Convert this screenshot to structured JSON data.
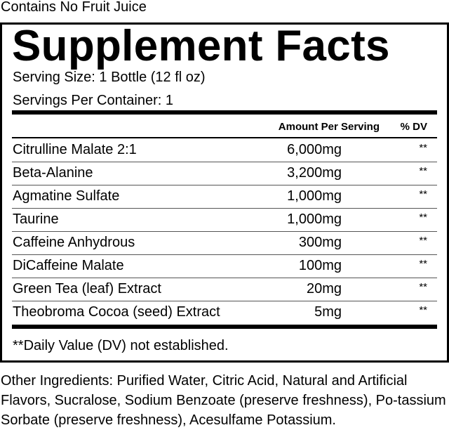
{
  "top_note": "Contains No Fruit Juice",
  "title": "Supplement Facts",
  "serving_size": "Serving Size: 1 Bottle (12 fl oz)",
  "servings_per_container": "Servings Per Container: 1",
  "header": {
    "amount": "Amount Per Serving",
    "dv": "% DV"
  },
  "rows": [
    {
      "name": "Citrulline Malate 2:1",
      "amount": "6,000mg",
      "dv": "**"
    },
    {
      "name": "Beta-Alanine",
      "amount": "3,200mg",
      "dv": "**"
    },
    {
      "name": "Agmatine Sulfate",
      "amount": "1,000mg",
      "dv": "**"
    },
    {
      "name": "Taurine",
      "amount": "1,000mg",
      "dv": "**"
    },
    {
      "name": "Caffeine Anhydrous",
      "amount": "300mg",
      "dv": "**"
    },
    {
      "name": "DiCaffeine Malate",
      "amount": "100mg",
      "dv": "**"
    },
    {
      "name": "Green Tea (leaf) Extract",
      "amount": "20mg",
      "dv": "**"
    },
    {
      "name": "Theobroma Cocoa (seed) Extract",
      "amount": "5mg",
      "dv": "**"
    }
  ],
  "footnote": "**Daily Value (DV) not established.",
  "other_ingredients": "Other Ingredients: Purified Water, Citric Acid, Natural and Artificial Flavors, Sucralose, Sodium Benzoate (preserve freshness), Po-tassium Sorbate (preserve freshness), Acesulfame Potassium."
}
